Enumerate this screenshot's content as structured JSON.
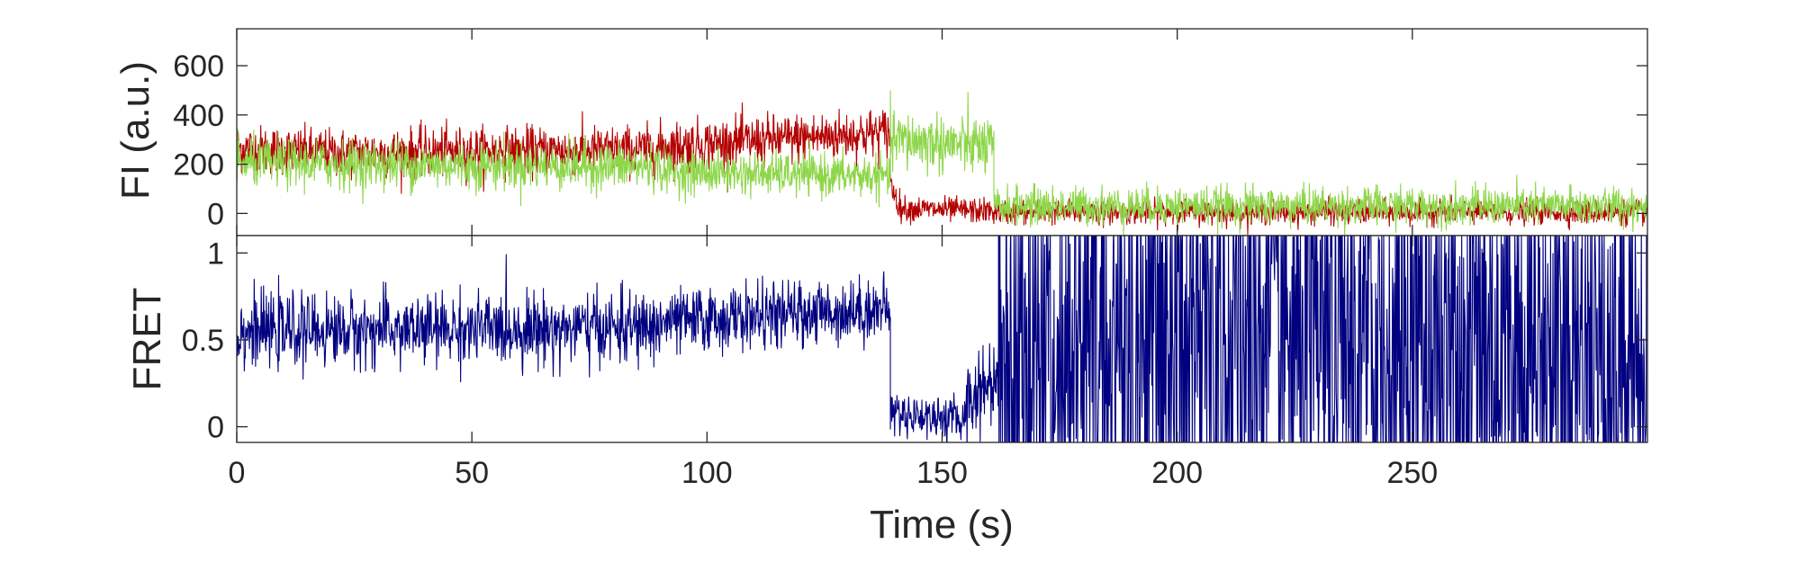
{
  "colors": {
    "acceptor": "#b40000",
    "donor": "#8ed64a",
    "fret": "#000080",
    "axis": "#262626",
    "background": "#ffffff"
  },
  "chart_data": [
    {
      "type": "line",
      "id": "intensity",
      "xlabel": "",
      "ylabel": "FI (a.u.)",
      "xlim": [
        0,
        300
      ],
      "ylim": [
        -90,
        750
      ],
      "yticks": [
        0,
        200,
        400,
        600
      ],
      "ytick_labels": [
        "0",
        "200",
        "400",
        "600"
      ],
      "grid": false,
      "legend": "none",
      "series": [
        {
          "color": "#b40000",
          "stroke": "acceptor",
          "segments": [
            {
              "x0": 0,
              "x1": 20,
              "mean0": 265,
              "mean1": 245,
              "sd": 48
            },
            {
              "x0": 20,
              "x1": 90,
              "mean0": 245,
              "mean1": 260,
              "sd": 48
            },
            {
              "x0": 90,
              "x1": 139,
              "mean0": 270,
              "mean1": 330,
              "sd": 50
            },
            {
              "x0": 139,
              "x1": 141,
              "mean0": 120,
              "mean1": 30,
              "sd": 30
            },
            {
              "x0": 141,
              "x1": 160,
              "mean0": 20,
              "mean1": 10,
              "sd": 25
            },
            {
              "x0": 160,
              "x1": 300,
              "mean0": 5,
              "mean1": 5,
              "sd": 24
            }
          ]
        },
        {
          "color": "#8ed64a",
          "stroke": "donor",
          "segments": [
            {
              "x0": 0,
              "x1": 20,
              "mean0": 205,
              "mean1": 200,
              "sd": 48
            },
            {
              "x0": 20,
              "x1": 90,
              "mean0": 200,
              "mean1": 190,
              "sd": 48
            },
            {
              "x0": 90,
              "x1": 139,
              "mean0": 170,
              "mean1": 150,
              "sd": 42
            },
            {
              "x0": 139,
              "x1": 161,
              "mean0": 300,
              "mean1": 270,
              "sd": 60
            },
            {
              "x0": 161,
              "x1": 300,
              "mean0": 30,
              "mean1": 30,
              "sd": 38
            }
          ]
        }
      ]
    },
    {
      "type": "line",
      "id": "fret",
      "xlabel": "Time (s)",
      "ylabel": "FRET",
      "xlim": [
        0,
        300
      ],
      "ylim": [
        -0.09,
        1.1
      ],
      "xticks": [
        0,
        50,
        100,
        150,
        200,
        250
      ],
      "xtick_labels": [
        "0",
        "50",
        "100",
        "150",
        "200",
        "250"
      ],
      "yticks": [
        0,
        0.5,
        1
      ],
      "ytick_labels": [
        "0",
        "0.5",
        "1"
      ],
      "grid": false,
      "legend": "none",
      "series": [
        {
          "color": "#000080",
          "stroke": "fret",
          "clip_to_axes": true,
          "segments": [
            {
              "x0": 0,
              "x1": 90,
              "mean0": 0.55,
              "mean1": 0.57,
              "sd": 0.1
            },
            {
              "x0": 90,
              "x1": 139,
              "mean0": 0.6,
              "mean1": 0.68,
              "sd": 0.09
            },
            {
              "x0": 139,
              "x1": 155,
              "mean0": 0.08,
              "mean1": 0.04,
              "sd": 0.06
            },
            {
              "x0": 155,
              "x1": 162,
              "mean0": 0.15,
              "mean1": 0.3,
              "sd": 0.12
            },
            {
              "x0": 162,
              "x1": 300,
              "mean0": 0.45,
              "mean1": 0.45,
              "sd": 0.9
            }
          ]
        }
      ]
    }
  ]
}
